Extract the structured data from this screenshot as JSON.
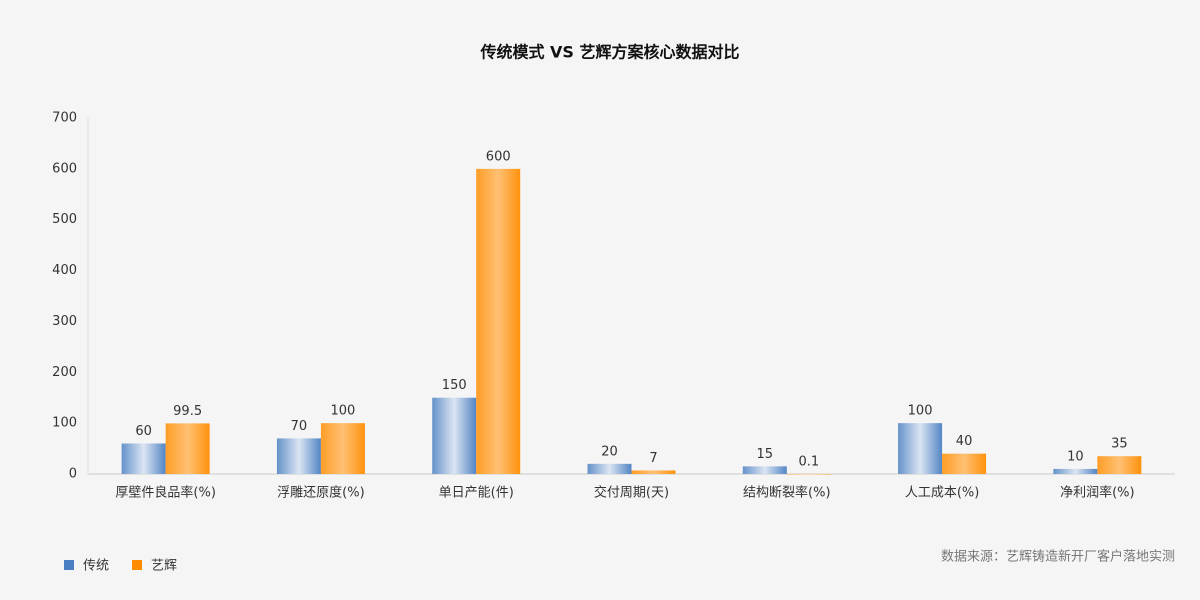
{
  "chart_data": {
    "type": "bar",
    "title": "传统模式 VS 艺辉方案核心数据对比",
    "categories": [
      "厚壁件良品率(%)",
      "浮雕还原度(%)",
      "单日产能(件)",
      "交付周期(天)",
      "结构断裂率(%)",
      "人工成本(%)",
      "净利润率(%)"
    ],
    "series": [
      {
        "name": "传统",
        "color": "#4a7fc1",
        "values": [
          60,
          70,
          150,
          20,
          15,
          100,
          10
        ]
      },
      {
        "name": "艺辉",
        "color": "#ff8c00",
        "values": [
          99.5,
          100,
          600,
          7,
          0.1,
          40,
          35
        ]
      }
    ],
    "ylim": [
      0,
      700
    ],
    "yticks": [
      0,
      100,
      200,
      300,
      400,
      500,
      600,
      700
    ],
    "grid": false,
    "legend": "bottom-left",
    "source": "数据来源：艺辉铸造新开厂客户落地实测"
  }
}
